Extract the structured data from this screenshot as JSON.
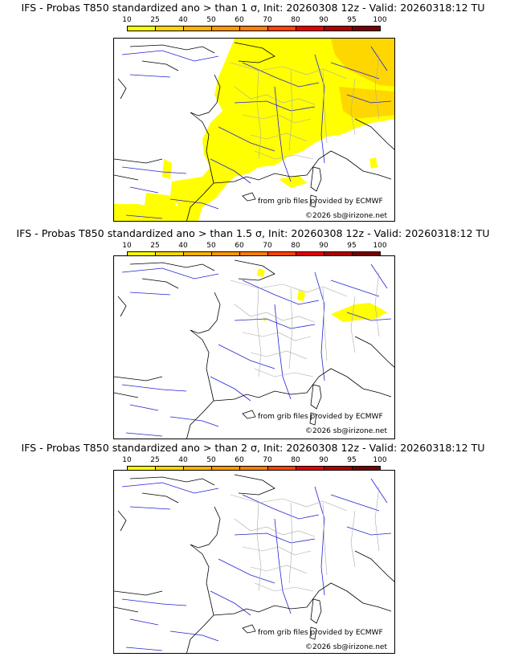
{
  "panels": [
    {
      "title": "IFS - Probas T850  standardized ano > than 1 σ, Init: 20260308 12z - Valid: 20260318:12 TU",
      "source": "from grib files provided by ECMWF",
      "copyright": "©2026 sb@irizone.net"
    },
    {
      "title": "IFS - Probas T850  standardized ano > than 1.5 σ, Init: 20260308 12z - Valid: 20260318:12 TU",
      "source": "from grib files provided by ECMWF",
      "copyright": "©2026 sb@irizone.net"
    },
    {
      "title": "IFS - Probas T850  standardized ano > than 2 σ, Init: 20260308 12z - Valid: 20260318:12 TU",
      "source": "from grib files provided by ECMWF",
      "copyright": "©2026 sb@irizone.net"
    }
  ],
  "colorbar": {
    "labels": [
      "10",
      "25",
      "40",
      "50",
      "60",
      "70",
      "80",
      "90",
      "95",
      "100"
    ],
    "colors": [
      "#ffff00",
      "#ffd700",
      "#ffb400",
      "#ff9900",
      "#ff7f00",
      "#ff4500",
      "#e60000",
      "#b00000",
      "#7a0000"
    ]
  },
  "map_colors": {
    "coast": "#000000",
    "rivers": "#2323d6",
    "borders": "#aaaaaa",
    "prob_low": "#ffff00",
    "prob_mid": "#ffd700"
  }
}
